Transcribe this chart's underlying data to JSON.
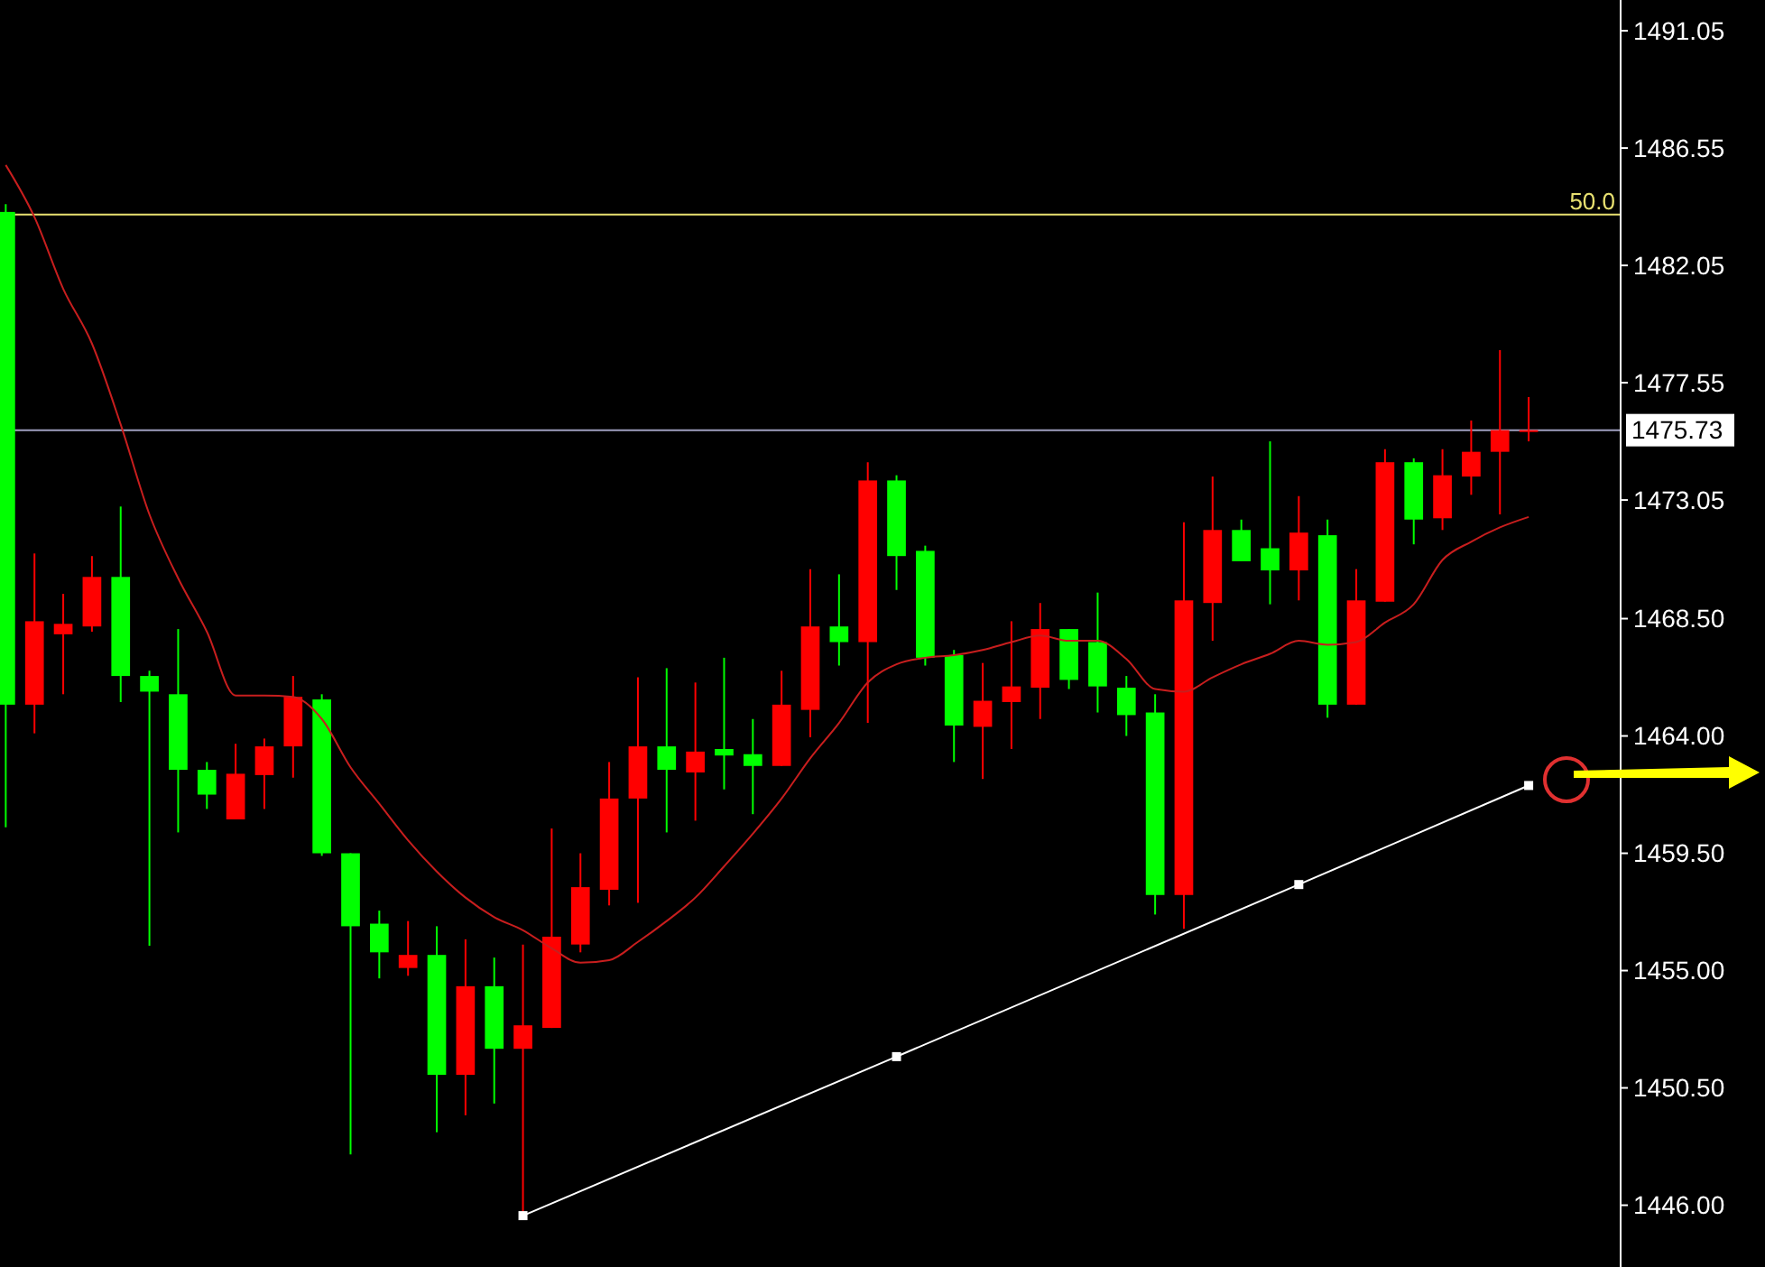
{
  "chart_data": {
    "type": "candlestick",
    "categories": [
      null,
      null,
      null,
      null,
      null,
      null,
      null,
      null,
      null,
      null,
      null,
      null,
      null,
      null,
      null,
      null,
      null,
      null,
      null,
      null,
      null,
      null,
      null,
      null,
      null,
      null,
      null,
      null,
      null,
      null,
      null,
      null,
      null,
      null,
      null,
      null,
      null,
      null,
      null,
      null,
      null,
      null,
      null,
      null,
      null,
      null,
      null,
      null,
      null,
      null,
      null,
      null,
      null,
      null
    ],
    "ohlc": [
      [
        1484.1,
        1484.4,
        1460.5,
        1465.2
      ],
      [
        1465.2,
        1471.0,
        1464.1,
        1468.4
      ],
      [
        1467.9,
        1469.45,
        1465.6,
        1468.3
      ],
      [
        1468.2,
        1470.9,
        1468.0,
        1470.1
      ],
      [
        1470.1,
        1472.8,
        1465.3,
        1466.3
      ],
      [
        1466.3,
        1466.5,
        1455.95,
        1465.7
      ],
      [
        1465.6,
        1468.1,
        1460.3,
        1462.7
      ],
      [
        1462.7,
        1463.0,
        1461.2,
        1461.75
      ],
      [
        1460.8,
        1463.7,
        1460.8,
        1462.55
      ],
      [
        1462.5,
        1463.9,
        1461.2,
        1463.6
      ],
      [
        1463.6,
        1466.3,
        1462.4,
        1465.5
      ],
      [
        1465.4,
        1465.6,
        1459.4,
        1459.5
      ],
      [
        1459.5,
        1459.5,
        1447.95,
        1456.7
      ],
      [
        1456.8,
        1457.3,
        1454.7,
        1455.7
      ],
      [
        1455.1,
        1456.9,
        1454.8,
        1455.6
      ],
      [
        1455.6,
        1456.7,
        1448.8,
        1451.0
      ],
      [
        1451.0,
        1456.2,
        1449.45,
        1454.4
      ],
      [
        1454.4,
        1455.5,
        1449.9,
        1452.0
      ],
      [
        1452.0,
        1456.0,
        1445.6,
        1452.9
      ],
      [
        1452.8,
        1460.45,
        1452.8,
        1456.3
      ],
      [
        1456.0,
        1459.5,
        1455.7,
        1458.2
      ],
      [
        1458.1,
        1463.0,
        1457.5,
        1461.6
      ],
      [
        1461.6,
        1466.25,
        1457.6,
        1463.6
      ],
      [
        1463.6,
        1466.6,
        1460.3,
        1462.7
      ],
      [
        1462.6,
        1466.05,
        1460.75,
        1463.4
      ],
      [
        1463.5,
        1467.0,
        1461.95,
        1463.25
      ],
      [
        1463.3,
        1464.65,
        1461.0,
        1462.85
      ],
      [
        1462.85,
        1466.5,
        1462.85,
        1465.2
      ],
      [
        1465.0,
        1470.4,
        1463.95,
        1468.2
      ],
      [
        1468.2,
        1470.2,
        1466.7,
        1467.6
      ],
      [
        1467.6,
        1474.5,
        1464.5,
        1473.8
      ],
      [
        1473.8,
        1474.0,
        1469.6,
        1470.9
      ],
      [
        1471.1,
        1471.3,
        1466.7,
        1467.0
      ],
      [
        1467.1,
        1467.3,
        1463.0,
        1464.4
      ],
      [
        1464.35,
        1466.8,
        1462.35,
        1465.35
      ],
      [
        1465.3,
        1468.4,
        1463.5,
        1465.9
      ],
      [
        1465.85,
        1469.1,
        1464.65,
        1468.1
      ],
      [
        1468.1,
        1468.1,
        1465.8,
        1466.15
      ],
      [
        1467.6,
        1469.5,
        1464.9,
        1465.9
      ],
      [
        1465.85,
        1466.3,
        1464.0,
        1464.8
      ],
      [
        1464.9,
        1465.6,
        1457.15,
        1457.9
      ],
      [
        1457.9,
        1472.2,
        1456.6,
        1469.2
      ],
      [
        1469.1,
        1473.95,
        1467.65,
        1471.9
      ],
      [
        1471.9,
        1472.3,
        1470.7,
        1470.7
      ],
      [
        1471.2,
        1475.3,
        1469.05,
        1470.35
      ],
      [
        1470.35,
        1473.2,
        1469.2,
        1471.8
      ],
      [
        1471.7,
        1472.3,
        1464.7,
        1465.2
      ],
      [
        1465.2,
        1470.4,
        1465.2,
        1469.2
      ],
      [
        1469.15,
        1475.0,
        1469.15,
        1474.5
      ],
      [
        1474.5,
        1474.65,
        1471.35,
        1472.3
      ],
      [
        1472.35,
        1475.0,
        1471.9,
        1474.0
      ],
      [
        1473.95,
        1476.1,
        1473.25,
        1474.9
      ],
      [
        1474.9,
        1478.8,
        1472.5,
        1475.73
      ],
      [
        1475.73,
        1477.0,
        1475.3,
        1475.73
      ]
    ],
    "colors": [
      "#00ff00",
      "#ff0000",
      "#ff0000",
      "#ff0000",
      "#00ff00",
      "#00ff00",
      "#00ff00",
      "#00ff00",
      "#ff0000",
      "#ff0000",
      "#ff0000",
      "#00ff00",
      "#00ff00",
      "#00ff00",
      "#ff0000",
      "#00ff00",
      "#ff0000",
      "#00ff00",
      "#ff0000",
      "#ff0000",
      "#ff0000",
      "#ff0000",
      "#ff0000",
      "#00ff00",
      "#ff0000",
      "#00ff00",
      "#00ff00",
      "#ff0000",
      "#ff0000",
      "#00ff00",
      "#ff0000",
      "#00ff00",
      "#00ff00",
      "#00ff00",
      "#ff0000",
      "#ff0000",
      "#ff0000",
      "#00ff00",
      "#00ff00",
      "#00ff00",
      "#00ff00",
      "#ff0000",
      "#ff0000",
      "#00ff00",
      "#00ff00",
      "#ff0000",
      "#00ff00",
      "#ff0000",
      "#ff0000",
      "#00ff00",
      "#ff0000",
      "#ff0000",
      "#ff0000",
      "#ff0000"
    ],
    "series": [
      {
        "type": "line",
        "color": "#c81e1e",
        "values": [
          1485.9,
          1483.9,
          1481.15,
          1479.05,
          1475.95,
          1472.5,
          1470.05,
          1468.0,
          1465.55,
          1465.55,
          1465.5,
          1464.65,
          1462.8,
          1461.4,
          1460.0,
          1458.8,
          1457.8,
          1457.05,
          1456.55,
          1455.85,
          1455.3,
          1455.4,
          1456.1,
          1456.9,
          1457.8,
          1459.0,
          1460.25,
          1461.6,
          1463.15,
          1464.5,
          1466.05,
          1466.75,
          1467.0,
          1467.1,
          1467.3,
          1467.6,
          1467.85,
          1467.65,
          1467.65,
          1466.95,
          1465.8,
          1465.7,
          1466.25,
          1466.75,
          1467.15,
          1467.65,
          1467.5,
          1467.6,
          1468.35,
          1469.05,
          1470.75,
          1471.45,
          1472.0,
          1472.4
        ]
      },
      {
        "type": "line",
        "color": "#ffffff",
        "marker": "square",
        "values": [
          null,
          null,
          null,
          null,
          null,
          null,
          null,
          null,
          null,
          null,
          null,
          null,
          null,
          null,
          null,
          null,
          null,
          null,
          1445.6,
          null,
          null,
          null,
          null,
          null,
          null,
          null,
          null,
          null,
          null,
          null,
          null,
          1451.7,
          null,
          null,
          null,
          null,
          null,
          null,
          null,
          null,
          null,
          null,
          null,
          null,
          null,
          1458.3,
          null,
          null,
          null,
          null,
          null,
          null,
          null,
          1462.1
        ]
      }
    ],
    "annotations": [
      "50.0"
    ],
    "ylim": [
      1443.63,
      1492.23
    ],
    "yticks": [
      1491.05,
      1486.55,
      1482.05,
      1477.55,
      1473.05,
      {
        "value": 1468.5,
        "label": "1468.50"
      },
      {
        "value": 1464,
        "label": "1464.00"
      },
      {
        "value": 1459.5,
        "label": "1459.50"
      },
      {
        "value": 1455,
        "label": "1455.00"
      },
      {
        "value": 1450.5,
        "label": "1450.50"
      },
      {
        "value": 1446,
        "label": "1446.00"
      }
    ],
    "ref_lines": [
      {
        "axis": "y",
        "value": 1484.0,
        "color": "#e8e070"
      },
      {
        "axis": "y",
        "value": 1475.73,
        "label": "1475.73",
        "color": "#a0a0c0"
      }
    ],
    "tick_labels": "y"
  }
}
